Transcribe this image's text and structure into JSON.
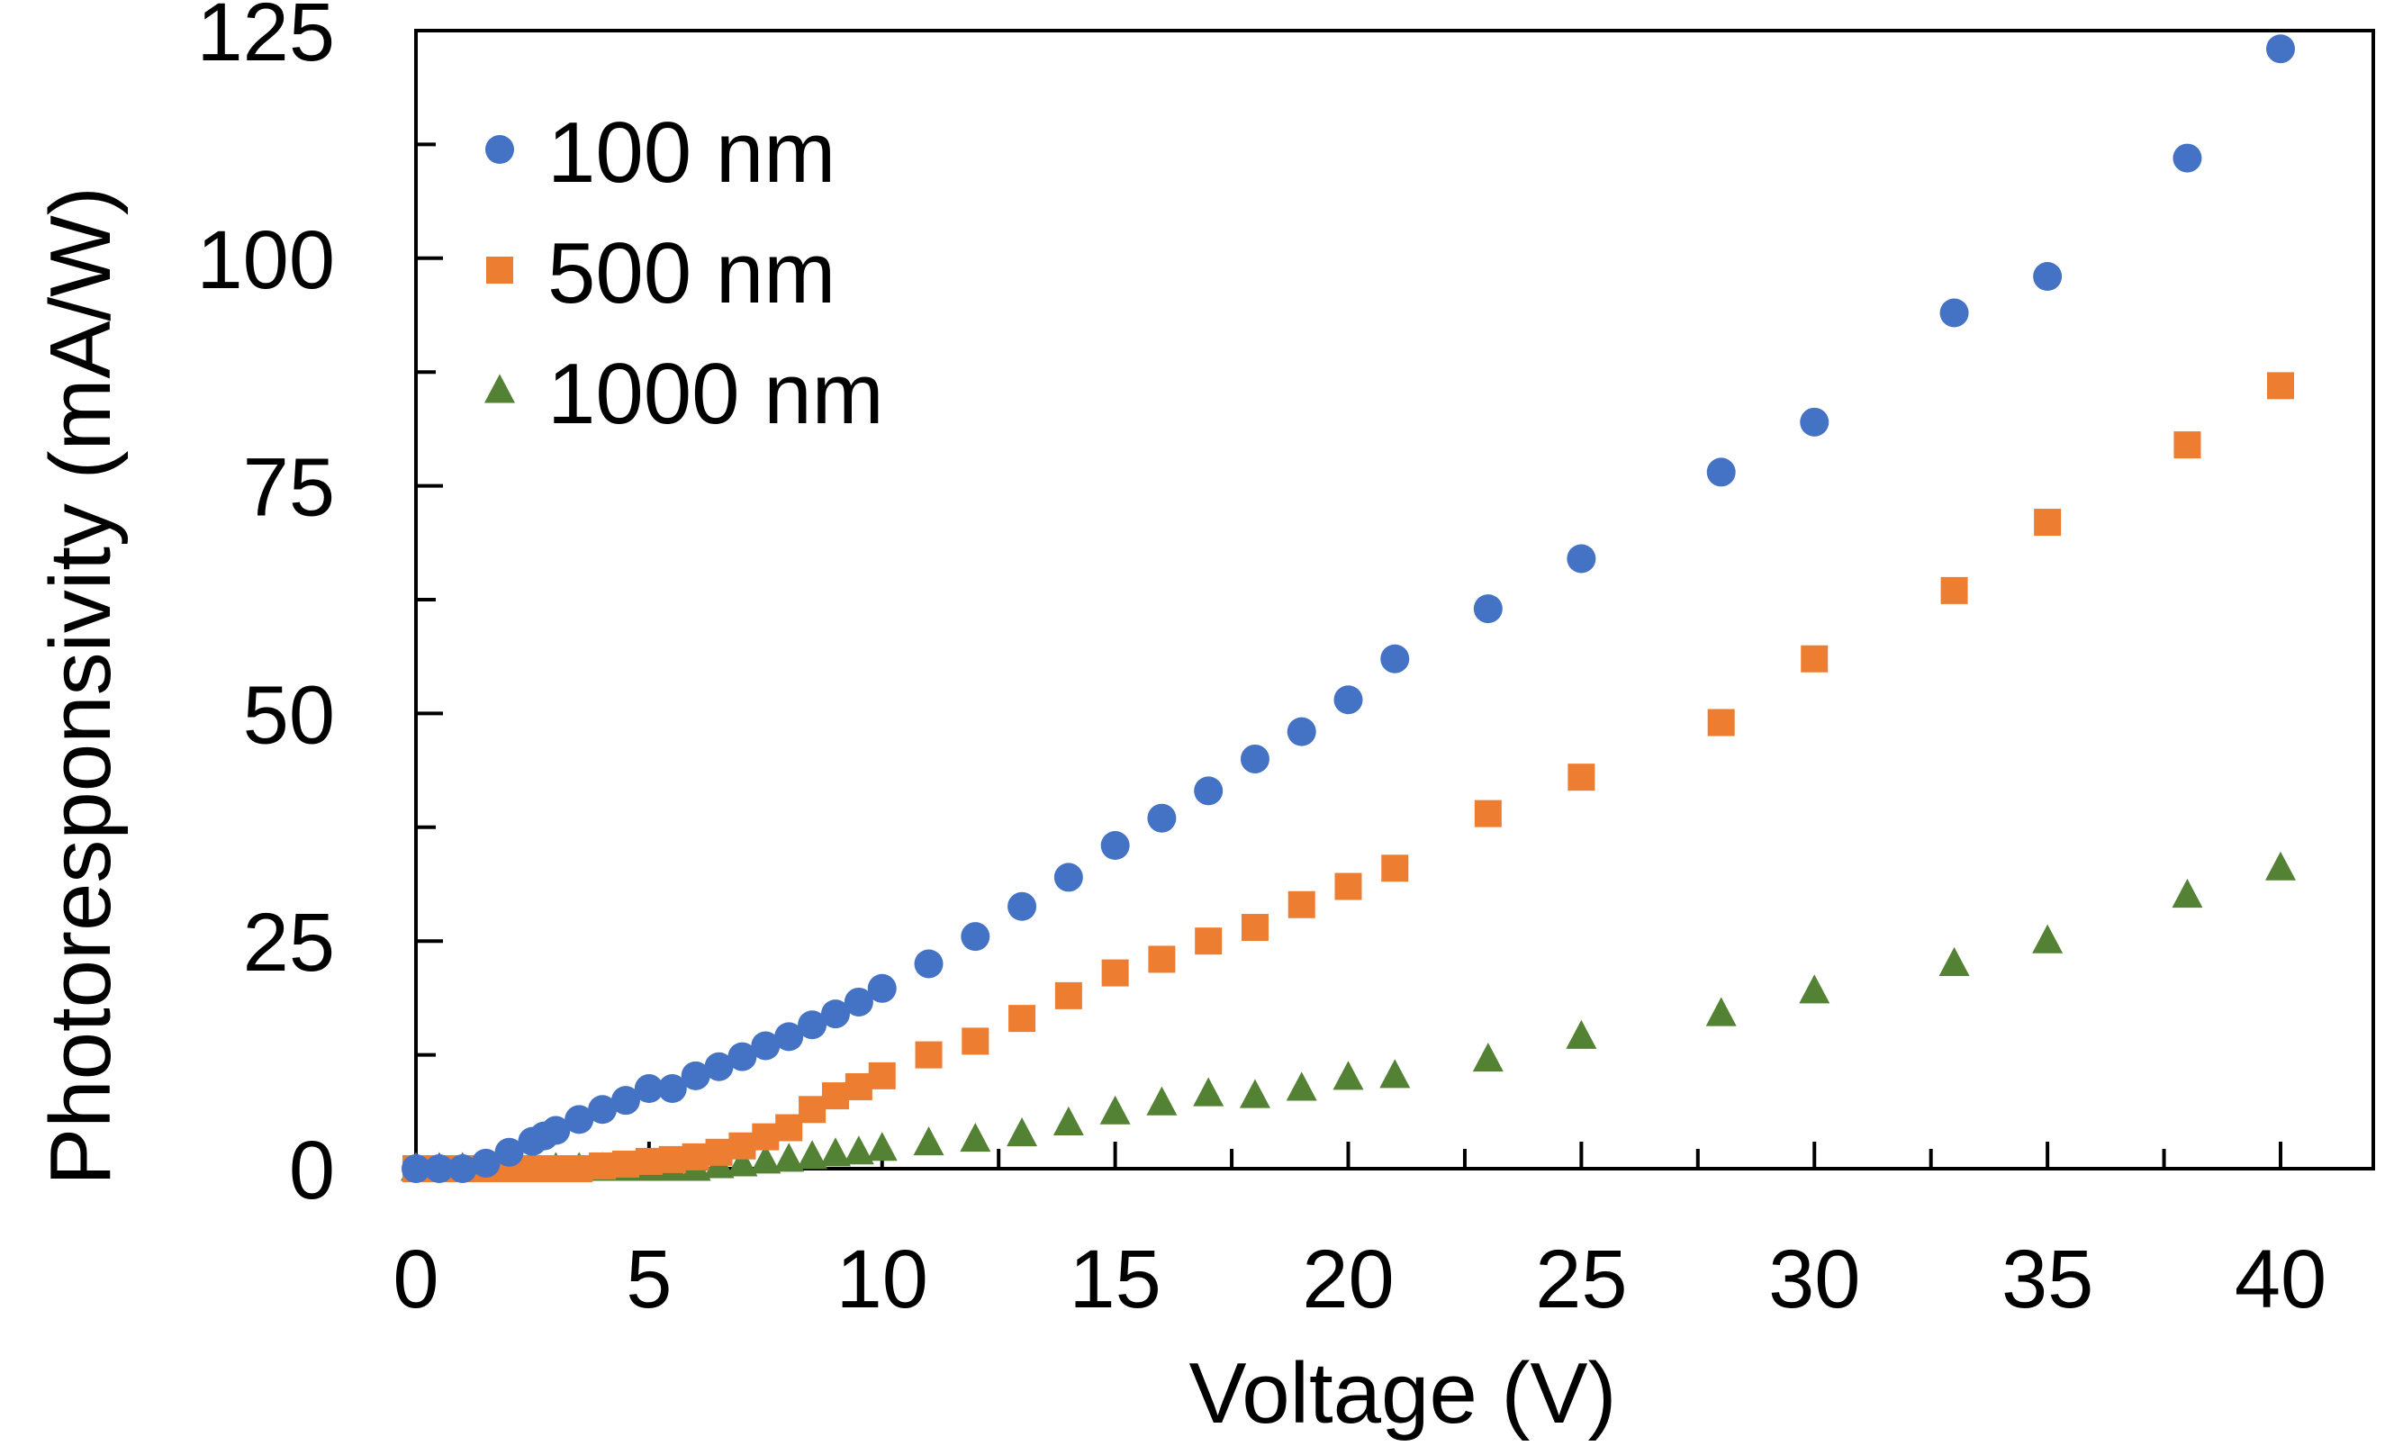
{
  "chart_data": {
    "type": "scatter",
    "title": "",
    "xlabel": "Voltage (V)",
    "ylabel": "Photoresponsivity (mA/W)",
    "xlim": [
      0,
      42
    ],
    "ylim": [
      0,
      125
    ],
    "x_ticks": [
      0,
      5,
      10,
      15,
      20,
      25,
      30,
      35,
      40
    ],
    "y_ticks": [
      0,
      25,
      50,
      75,
      100,
      125
    ],
    "x_tick_labels": [
      "0",
      "5",
      "10",
      "15",
      "20",
      "25",
      "30",
      "35",
      "40"
    ],
    "y_tick_labels": [
      "0",
      "25",
      "50",
      "75",
      "100",
      "125"
    ],
    "grid": false,
    "legend_position": "top-left",
    "series": [
      {
        "name": "100 nm",
        "marker": "circle",
        "color": "#4472C4",
        "x": [
          0,
          0.5,
          1,
          1.5,
          2,
          2.5,
          2.75,
          3,
          3.5,
          4,
          4.5,
          5,
          5.5,
          6,
          6.5,
          7,
          7.5,
          8,
          8.5,
          9,
          9.5,
          10,
          11,
          12,
          13,
          14,
          15,
          16,
          17,
          18,
          19,
          20,
          21,
          23,
          25,
          28,
          30,
          33,
          35,
          38,
          40
        ],
        "y": [
          0,
          0,
          0,
          0.6,
          1.8,
          3.0,
          3.6,
          4.2,
          5.4,
          6.5,
          7.5,
          8.8,
          8.8,
          10.2,
          11.2,
          12.3,
          13.5,
          14.5,
          15.8,
          17.0,
          18.3,
          19.8,
          22.5,
          25.5,
          28.8,
          32.0,
          35.5,
          38.5,
          41.5,
          45.0,
          48.0,
          51.5,
          56.0,
          61.5,
          67.0,
          76.5,
          82.0,
          94.0,
          98.0,
          111.0,
          123.0
        ]
      },
      {
        "name": "500 nm",
        "marker": "square",
        "color": "#ED7D31",
        "x": [
          0,
          0.5,
          1,
          1.5,
          2,
          2.5,
          3,
          3.5,
          4,
          4.5,
          5,
          5.5,
          6,
          6.5,
          7,
          7.5,
          8,
          8.5,
          9,
          9.5,
          10,
          11,
          12,
          13,
          14,
          15,
          16,
          17,
          18,
          19,
          20,
          21,
          23,
          25,
          28,
          30,
          33,
          35,
          38,
          40
        ],
        "y": [
          0,
          0,
          0,
          0,
          0,
          0,
          0,
          0,
          0.3,
          0.5,
          0.8,
          1.0,
          1.3,
          1.8,
          2.5,
          3.5,
          4.5,
          6.5,
          8.0,
          9.0,
          10.2,
          12.5,
          14.0,
          16.5,
          19.0,
          21.5,
          23.0,
          25.0,
          26.5,
          29.0,
          31.0,
          33.0,
          39.0,
          43.0,
          49.0,
          56.0,
          63.5,
          71.0,
          79.5,
          86.0
        ]
      },
      {
        "name": "1000 nm",
        "marker": "triangle",
        "color": "#548235",
        "x": [
          0,
          0.5,
          1,
          1.5,
          2,
          2.5,
          3,
          3.5,
          4,
          4.5,
          5,
          5.5,
          6,
          6.5,
          7,
          7.5,
          8,
          8.5,
          9,
          9.5,
          10,
          11,
          12,
          13,
          14,
          15,
          16,
          17,
          18,
          19,
          20,
          21,
          23,
          25,
          28,
          30,
          33,
          35,
          38,
          40
        ],
        "y": [
          0,
          0,
          0,
          0,
          0,
          0,
          0,
          0,
          0,
          0,
          0,
          0,
          0,
          0.3,
          0.5,
          0.8,
          1.0,
          1.3,
          1.6,
          1.8,
          2.2,
          2.8,
          3.2,
          3.8,
          5.0,
          6.2,
          7.2,
          8.2,
          8.0,
          8.8,
          10.0,
          10.2,
          12.0,
          14.5,
          17.0,
          19.5,
          22.5,
          25.0,
          30.0,
          33.0
        ]
      }
    ]
  }
}
